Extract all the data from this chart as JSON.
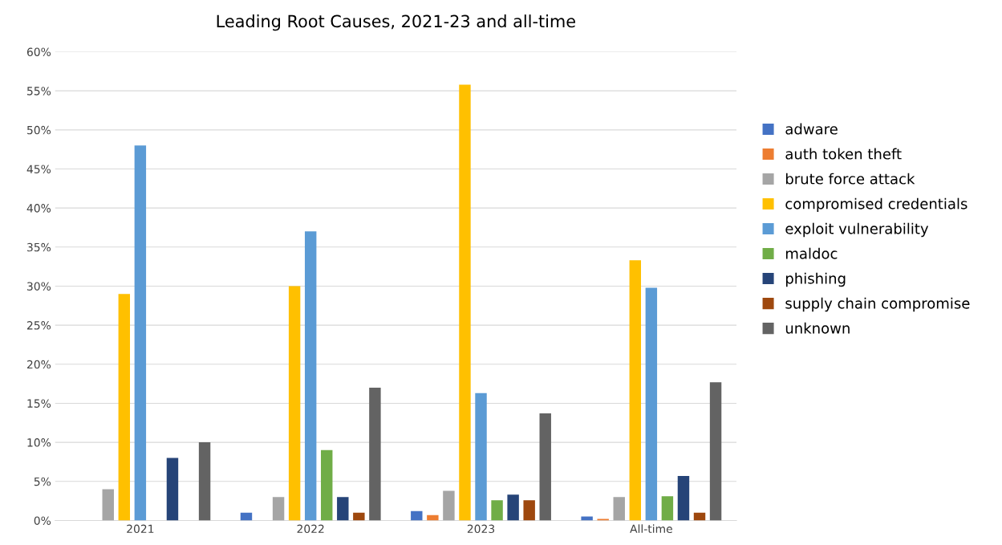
{
  "chart_data": {
    "type": "bar",
    "title": "Leading Root Causes, 2021-23 and all-time",
    "categories": [
      "2021",
      "2022",
      "2023",
      "All-time"
    ],
    "series": [
      {
        "name": "adware",
        "color": "#4472c4",
        "values": [
          0,
          1,
          1.2,
          0.5
        ]
      },
      {
        "name": "auth token theft",
        "color": "#ed7d31",
        "values": [
          0,
          0,
          0.7,
          0.2
        ]
      },
      {
        "name": "brute force attack",
        "color": "#a5a5a5",
        "values": [
          4,
          3,
          3.8,
          3
        ]
      },
      {
        "name": "compromised credentials",
        "color": "#ffc000",
        "values": [
          29,
          30,
          55.8,
          33.3
        ]
      },
      {
        "name": "exploit vulnerability",
        "color": "#5b9bd5",
        "values": [
          48,
          37,
          16.3,
          29.8
        ]
      },
      {
        "name": "maldoc",
        "color": "#70ad47",
        "values": [
          0,
          9,
          2.6,
          3.1
        ]
      },
      {
        "name": "phishing",
        "color": "#264478",
        "values": [
          8,
          3,
          3.3,
          5.7
        ]
      },
      {
        "name": "supply chain compromise",
        "color": "#9e480e",
        "values": [
          0,
          1,
          2.6,
          1
        ]
      },
      {
        "name": "unknown",
        "color": "#636363",
        "values": [
          10,
          17,
          13.7,
          17.7
        ]
      }
    ],
    "ylim": [
      0,
      60
    ],
    "yticks": [
      {
        "value": 0,
        "label": "0%"
      },
      {
        "value": 5,
        "label": "5%"
      },
      {
        "value": 10,
        "label": "10%"
      },
      {
        "value": 15,
        "label": "15%"
      },
      {
        "value": 20,
        "label": "20%"
      },
      {
        "value": 25,
        "label": "25%"
      },
      {
        "value": 30,
        "label": "30%"
      },
      {
        "value": 35,
        "label": "35%"
      },
      {
        "value": 40,
        "label": "40%"
      },
      {
        "value": 45,
        "label": "45%"
      },
      {
        "value": 50,
        "label": "50%"
      },
      {
        "value": 55,
        "label": "55%"
      },
      {
        "value": 60,
        "label": "60%"
      }
    ],
    "grid": "y",
    "legend": "right"
  }
}
